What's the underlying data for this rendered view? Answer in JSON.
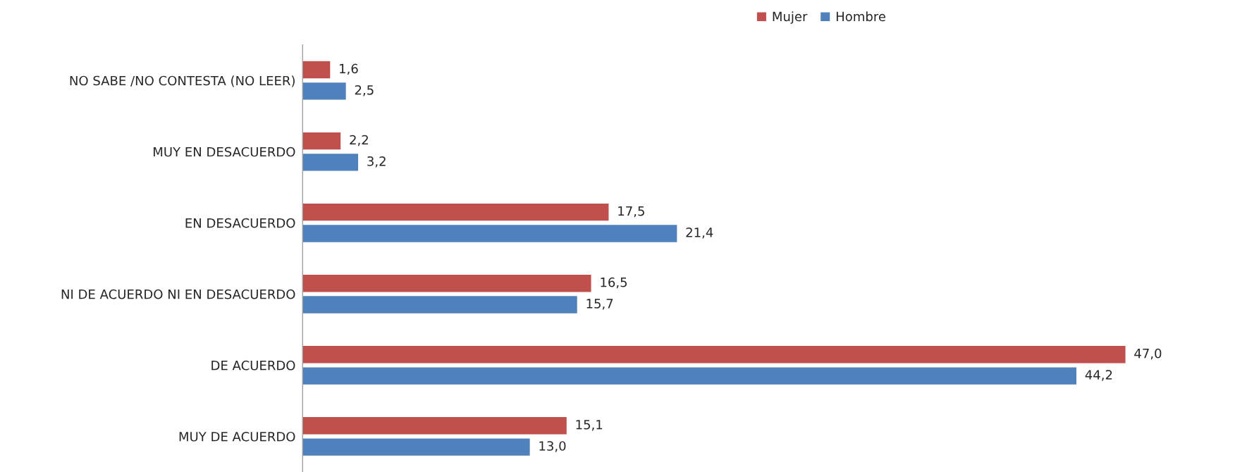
{
  "chart_data": {
    "type": "bar",
    "orientation": "horizontal",
    "categories": [
      "NO SABE /NO CONTESTA (NO LEER)",
      "MUY EN DESACUERDO",
      "EN DESACUERDO",
      "NI DE ACUERDO NI EN DESACUERDO",
      "DE ACUERDO",
      "MUY DE ACUERDO"
    ],
    "series": [
      {
        "name": "Mujer",
        "color": "#c0504d",
        "values": [
          1.6,
          2.2,
          17.5,
          16.5,
          47.0,
          15.1
        ],
        "value_labels": [
          "1,6",
          "2,2",
          "17,5",
          "16,5",
          "47,0",
          "15,1"
        ]
      },
      {
        "name": "Hombre",
        "color": "#4f81bd",
        "values": [
          2.5,
          3.2,
          21.4,
          15.7,
          44.2,
          13.0
        ],
        "value_labels": [
          "2,5",
          "3,2",
          "21,4",
          "15,7",
          "44,2",
          "13,0"
        ]
      }
    ],
    "legend": "top",
    "tick_labels": "y",
    "grid": false
  }
}
